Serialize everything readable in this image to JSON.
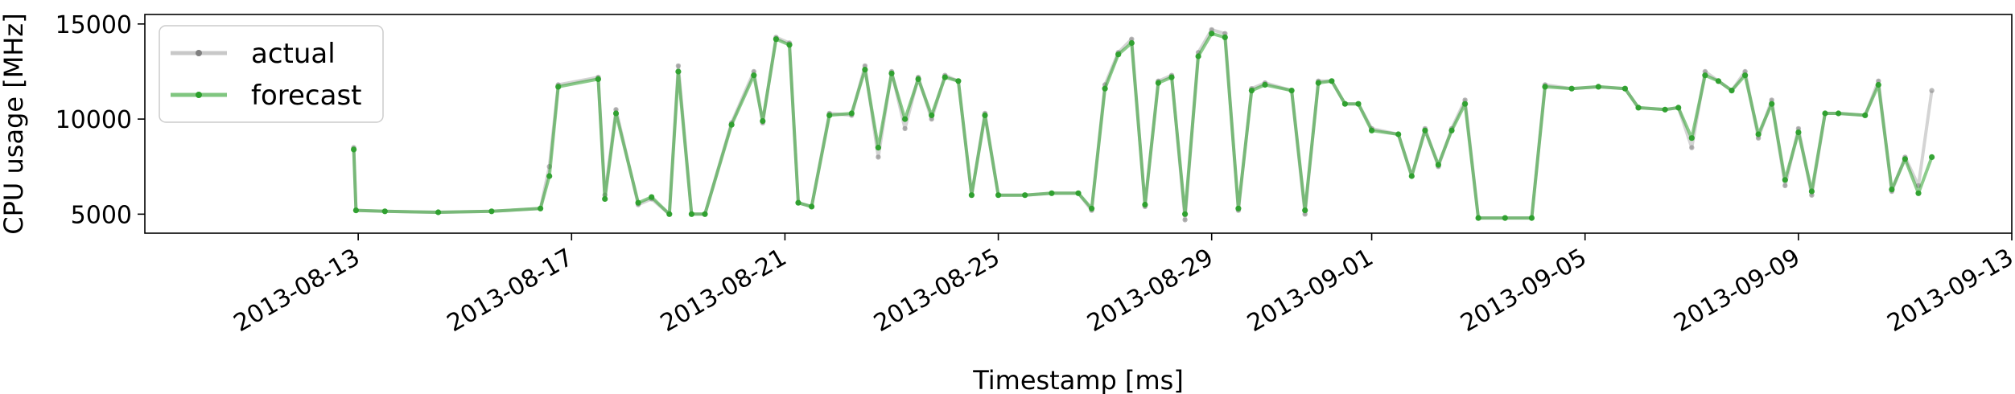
{
  "chart_data": {
    "type": "line",
    "title": "",
    "xlabel": "Timestamp [ms]",
    "ylabel": "CPU usage [MHz]",
    "x_type": "date",
    "xlim": [
      "2013-08-09",
      "2013-09-13"
    ],
    "ylim": [
      4000,
      15500
    ],
    "x_ticks": [
      "2013-08-13",
      "2013-08-17",
      "2013-08-21",
      "2013-08-25",
      "2013-08-29",
      "2013-09-01",
      "2013-09-05",
      "2013-09-09",
      "2013-09-13"
    ],
    "y_ticks": [
      5000,
      10000,
      15000
    ],
    "grid": false,
    "legend": {
      "position": "top-left"
    },
    "series": [
      {
        "name": "actual",
        "color": "#808080",
        "points": [
          [
            "2013-08-12 22:00",
            8500
          ],
          [
            "2013-08-12 23:00",
            5200
          ],
          [
            "2013-08-13 12:00",
            5150
          ],
          [
            "2013-08-14 12:00",
            5100
          ],
          [
            "2013-08-15 12:00",
            5150
          ],
          [
            "2013-08-16 10:00",
            5300
          ],
          [
            "2013-08-16 14:00",
            7500
          ],
          [
            "2013-08-16 18:00",
            11800
          ],
          [
            "2013-08-17 12:00",
            12200
          ],
          [
            "2013-08-17 15:00",
            6000
          ],
          [
            "2013-08-17 20:00",
            10500
          ],
          [
            "2013-08-18 06:00",
            5500
          ],
          [
            "2013-08-18 12:00",
            5800
          ],
          [
            "2013-08-18 20:00",
            5000
          ],
          [
            "2013-08-19 00:00",
            12800
          ],
          [
            "2013-08-19 06:00",
            5000
          ],
          [
            "2013-08-19 12:00",
            5000
          ],
          [
            "2013-08-20 00:00",
            9800
          ],
          [
            "2013-08-20 10:00",
            12500
          ],
          [
            "2013-08-20 14:00",
            9800
          ],
          [
            "2013-08-20 20:00",
            14300
          ],
          [
            "2013-08-21 02:00",
            14000
          ],
          [
            "2013-08-21 06:00",
            5600
          ],
          [
            "2013-08-21 12:00",
            5400
          ],
          [
            "2013-08-21 20:00",
            10300
          ],
          [
            "2013-08-22 06:00",
            10200
          ],
          [
            "2013-08-22 12:00",
            12800
          ],
          [
            "2013-08-22 18:00",
            8000
          ],
          [
            "2013-08-23 00:00",
            12500
          ],
          [
            "2013-08-23 06:00",
            9500
          ],
          [
            "2013-08-23 12:00",
            12200
          ],
          [
            "2013-08-23 18:00",
            10000
          ],
          [
            "2013-08-24 00:00",
            12300
          ],
          [
            "2013-08-24 06:00",
            12000
          ],
          [
            "2013-08-24 12:00",
            6000
          ],
          [
            "2013-08-24 18:00",
            10300
          ],
          [
            "2013-08-25 00:00",
            6000
          ],
          [
            "2013-08-25 12:00",
            6000
          ],
          [
            "2013-08-26 00:00",
            6100
          ],
          [
            "2013-08-26 12:00",
            6100
          ],
          [
            "2013-08-26 18:00",
            5200
          ],
          [
            "2013-08-27 00:00",
            11800
          ],
          [
            "2013-08-27 06:00",
            13500
          ],
          [
            "2013-08-27 12:00",
            14200
          ],
          [
            "2013-08-27 18:00",
            5400
          ],
          [
            "2013-08-28 00:00",
            12000
          ],
          [
            "2013-08-28 06:00",
            12300
          ],
          [
            "2013-08-28 12:00",
            4700
          ],
          [
            "2013-08-28 18:00",
            13500
          ],
          [
            "2013-08-29 00:00",
            14700
          ],
          [
            "2013-08-29 06:00",
            14500
          ],
          [
            "2013-08-29 12:00",
            5200
          ],
          [
            "2013-08-29 18:00",
            11600
          ],
          [
            "2013-08-30 00:00",
            11900
          ],
          [
            "2013-08-30 12:00",
            11500
          ],
          [
            "2013-08-30 18:00",
            5000
          ],
          [
            "2013-08-31 00:00",
            12000
          ],
          [
            "2013-08-31 06:00",
            12000
          ],
          [
            "2013-08-31 12:00",
            10800
          ],
          [
            "2013-08-31 18:00",
            10800
          ],
          [
            "2013-09-01 00:00",
            9500
          ],
          [
            "2013-09-01 12:00",
            9200
          ],
          [
            "2013-09-01 18:00",
            7000
          ],
          [
            "2013-09-02 00:00",
            9500
          ],
          [
            "2013-09-02 06:00",
            7500
          ],
          [
            "2013-09-02 12:00",
            9500
          ],
          [
            "2013-09-02 18:00",
            11000
          ],
          [
            "2013-09-03 00:00",
            4800
          ],
          [
            "2013-09-03 12:00",
            4800
          ],
          [
            "2013-09-04 00:00",
            4800
          ],
          [
            "2013-09-04 06:00",
            11800
          ],
          [
            "2013-09-04 18:00",
            11600
          ],
          [
            "2013-09-05 06:00",
            11700
          ],
          [
            "2013-09-05 18:00",
            11600
          ],
          [
            "2013-09-06 00:00",
            10600
          ],
          [
            "2013-09-06 12:00",
            10500
          ],
          [
            "2013-09-06 18:00",
            10600
          ],
          [
            "2013-09-07 00:00",
            8500
          ],
          [
            "2013-09-07 06:00",
            12500
          ],
          [
            "2013-09-07 12:00",
            12000
          ],
          [
            "2013-09-07 18:00",
            11500
          ],
          [
            "2013-09-08 00:00",
            12500
          ],
          [
            "2013-09-08 06:00",
            9000
          ],
          [
            "2013-09-08 12:00",
            11000
          ],
          [
            "2013-09-08 18:00",
            6500
          ],
          [
            "2013-09-09 00:00",
            9500
          ],
          [
            "2013-09-09 06:00",
            6000
          ],
          [
            "2013-09-09 12:00",
            10300
          ],
          [
            "2013-09-09 18:00",
            10300
          ],
          [
            "2013-09-10 06:00",
            10200
          ],
          [
            "2013-09-10 12:00",
            12000
          ],
          [
            "2013-09-10 18:00",
            6200
          ],
          [
            "2013-09-11 00:00",
            8000
          ],
          [
            "2013-09-11 06:00",
            6500
          ],
          [
            "2013-09-11 12:00",
            11500
          ]
        ]
      },
      {
        "name": "forecast",
        "color": "#2ca02c",
        "points": [
          [
            "2013-08-12 22:00",
            8400
          ],
          [
            "2013-08-12 23:00",
            5200
          ],
          [
            "2013-08-13 12:00",
            5150
          ],
          [
            "2013-08-14 12:00",
            5100
          ],
          [
            "2013-08-15 12:00",
            5150
          ],
          [
            "2013-08-16 10:00",
            5300
          ],
          [
            "2013-08-16 14:00",
            7000
          ],
          [
            "2013-08-16 18:00",
            11700
          ],
          [
            "2013-08-17 12:00",
            12100
          ],
          [
            "2013-08-17 15:00",
            5800
          ],
          [
            "2013-08-17 20:00",
            10300
          ],
          [
            "2013-08-18 06:00",
            5600
          ],
          [
            "2013-08-18 12:00",
            5900
          ],
          [
            "2013-08-18 20:00",
            5000
          ],
          [
            "2013-08-19 00:00",
            12500
          ],
          [
            "2013-08-19 06:00",
            5000
          ],
          [
            "2013-08-19 12:00",
            5000
          ],
          [
            "2013-08-20 00:00",
            9700
          ],
          [
            "2013-08-20 10:00",
            12300
          ],
          [
            "2013-08-20 14:00",
            9900
          ],
          [
            "2013-08-20 20:00",
            14200
          ],
          [
            "2013-08-21 02:00",
            13900
          ],
          [
            "2013-08-21 06:00",
            5600
          ],
          [
            "2013-08-21 12:00",
            5400
          ],
          [
            "2013-08-21 20:00",
            10200
          ],
          [
            "2013-08-22 06:00",
            10300
          ],
          [
            "2013-08-22 12:00",
            12600
          ],
          [
            "2013-08-22 18:00",
            8500
          ],
          [
            "2013-08-23 00:00",
            12400
          ],
          [
            "2013-08-23 06:00",
            10000
          ],
          [
            "2013-08-23 12:00",
            12100
          ],
          [
            "2013-08-23 18:00",
            10200
          ],
          [
            "2013-08-24 00:00",
            12200
          ],
          [
            "2013-08-24 06:00",
            12000
          ],
          [
            "2013-08-24 12:00",
            6000
          ],
          [
            "2013-08-24 18:00",
            10200
          ],
          [
            "2013-08-25 00:00",
            6000
          ],
          [
            "2013-08-25 12:00",
            6000
          ],
          [
            "2013-08-26 00:00",
            6100
          ],
          [
            "2013-08-26 12:00",
            6100
          ],
          [
            "2013-08-26 18:00",
            5300
          ],
          [
            "2013-08-27 00:00",
            11600
          ],
          [
            "2013-08-27 06:00",
            13400
          ],
          [
            "2013-08-27 12:00",
            14000
          ],
          [
            "2013-08-27 18:00",
            5500
          ],
          [
            "2013-08-28 00:00",
            11900
          ],
          [
            "2013-08-28 06:00",
            12200
          ],
          [
            "2013-08-28 12:00",
            5000
          ],
          [
            "2013-08-28 18:00",
            13300
          ],
          [
            "2013-08-29 00:00",
            14500
          ],
          [
            "2013-08-29 06:00",
            14300
          ],
          [
            "2013-08-29 12:00",
            5300
          ],
          [
            "2013-08-29 18:00",
            11500
          ],
          [
            "2013-08-30 00:00",
            11800
          ],
          [
            "2013-08-30 12:00",
            11500
          ],
          [
            "2013-08-30 18:00",
            5200
          ],
          [
            "2013-08-31 00:00",
            11900
          ],
          [
            "2013-08-31 06:00",
            12000
          ],
          [
            "2013-08-31 12:00",
            10800
          ],
          [
            "2013-08-31 18:00",
            10800
          ],
          [
            "2013-09-01 00:00",
            9400
          ],
          [
            "2013-09-01 12:00",
            9200
          ],
          [
            "2013-09-01 18:00",
            7000
          ],
          [
            "2013-09-02 00:00",
            9400
          ],
          [
            "2013-09-02 06:00",
            7600
          ],
          [
            "2013-09-02 12:00",
            9400
          ],
          [
            "2013-09-02 18:00",
            10800
          ],
          [
            "2013-09-03 00:00",
            4800
          ],
          [
            "2013-09-03 12:00",
            4800
          ],
          [
            "2013-09-04 00:00",
            4800
          ],
          [
            "2013-09-04 06:00",
            11700
          ],
          [
            "2013-09-04 18:00",
            11600
          ],
          [
            "2013-09-05 06:00",
            11700
          ],
          [
            "2013-09-05 18:00",
            11600
          ],
          [
            "2013-09-06 00:00",
            10600
          ],
          [
            "2013-09-06 12:00",
            10500
          ],
          [
            "2013-09-06 18:00",
            10600
          ],
          [
            "2013-09-07 00:00",
            9000
          ],
          [
            "2013-09-07 06:00",
            12300
          ],
          [
            "2013-09-07 12:00",
            12000
          ],
          [
            "2013-09-07 18:00",
            11500
          ],
          [
            "2013-09-08 00:00",
            12300
          ],
          [
            "2013-09-08 06:00",
            9200
          ],
          [
            "2013-09-08 12:00",
            10800
          ],
          [
            "2013-09-08 18:00",
            6800
          ],
          [
            "2013-09-09 00:00",
            9300
          ],
          [
            "2013-09-09 06:00",
            6200
          ],
          [
            "2013-09-09 12:00",
            10300
          ],
          [
            "2013-09-09 18:00",
            10300
          ],
          [
            "2013-09-10 06:00",
            10200
          ],
          [
            "2013-09-10 12:00",
            11800
          ],
          [
            "2013-09-10 18:00",
            6300
          ],
          [
            "2013-09-11 00:00",
            7900
          ],
          [
            "2013-09-11 06:00",
            6100
          ],
          [
            "2013-09-11 12:00",
            8000
          ]
        ]
      }
    ]
  }
}
